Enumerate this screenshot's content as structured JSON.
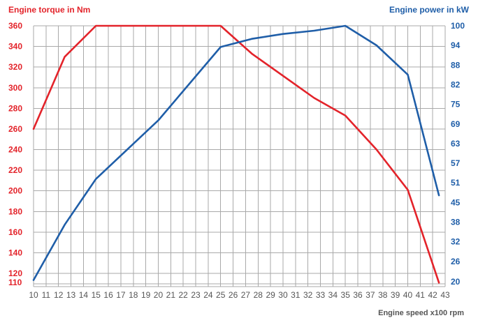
{
  "chart_data": {
    "type": "line",
    "title": "",
    "ylabel": "Engine torque in Nm",
    "ylabel_right": "Engine power in kW",
    "xlabel": "Engine speed x100 rpm",
    "grid": true,
    "xlim": [
      10,
      43
    ],
    "ylim": [
      110,
      360
    ],
    "ylim_right": [
      20,
      100
    ],
    "x_ticks": [
      "10",
      "11",
      "12",
      "13",
      "14",
      "15",
      "16",
      "17",
      "18",
      "19",
      "20",
      "21",
      "22",
      "23",
      "24",
      "25",
      "26",
      "27",
      "28",
      "29",
      "30",
      "31",
      "32",
      "33",
      "34",
      "35",
      "36",
      "37",
      "38",
      "39",
      "40",
      "41",
      "42",
      "43"
    ],
    "y_ticks_left": [
      "360",
      "340",
      "320",
      "300",
      "280",
      "260",
      "240",
      "220",
      "200",
      "180",
      "160",
      "140",
      "120",
      "110"
    ],
    "y_ticks_right": [
      "100",
      "94",
      "88",
      "82",
      "75",
      "69",
      "63",
      "57",
      "51",
      "45",
      "38",
      "32",
      "26",
      "20"
    ],
    "series": [
      {
        "name": "Engine torque in Nm",
        "axis": "left",
        "color": "#e3232a",
        "points": [
          [
            10,
            260
          ],
          [
            12.5,
            330
          ],
          [
            15,
            360
          ],
          [
            25,
            360
          ],
          [
            27.5,
            333
          ],
          [
            32.5,
            290
          ],
          [
            35,
            273
          ],
          [
            37.5,
            240
          ],
          [
            40,
            201
          ],
          [
            42.5,
            111
          ]
        ]
      },
      {
        "name": "Engine power in kW",
        "axis": "right",
        "color": "#1f5ea8",
        "points": [
          [
            10,
            22
          ],
          [
            12.5,
            39
          ],
          [
            15,
            53
          ],
          [
            20,
            71
          ],
          [
            25,
            93.5
          ],
          [
            27.5,
            96
          ],
          [
            30,
            97.5
          ],
          [
            32.5,
            98.5
          ],
          [
            35,
            100
          ],
          [
            37.5,
            94
          ],
          [
            40,
            85
          ],
          [
            42.5,
            48
          ]
        ]
      }
    ]
  }
}
